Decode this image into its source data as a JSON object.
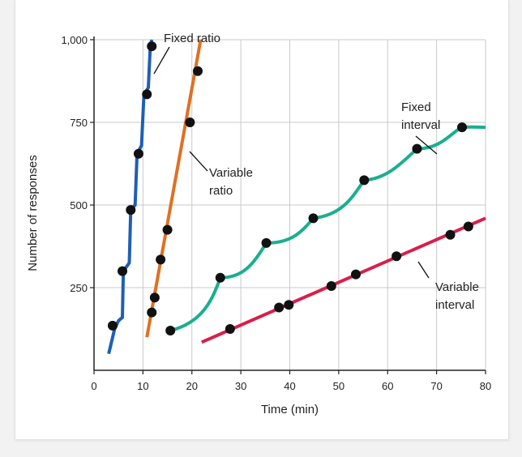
{
  "chart_data": {
    "type": "line",
    "title": "",
    "xlabel": "Time (min)",
    "ylabel": "Number of responses",
    "xlim": [
      0,
      80
    ],
    "ylim": [
      0,
      1000
    ],
    "x_ticks": [
      0,
      10,
      20,
      30,
      40,
      50,
      60,
      70,
      80
    ],
    "y_ticks": [
      250,
      500,
      750,
      1000
    ],
    "y_tick_labels": [
      "250",
      "500",
      "750",
      "1,000"
    ],
    "grid": true,
    "legend": "none (series labeled directly on the chart)",
    "series": [
      {
        "name": "Fixed ratio",
        "label_lines": [
          "Fixed ratio"
        ],
        "color": "#1f5fb4",
        "path": [
          [
            3.0,
            50
          ],
          [
            4.2,
            125
          ],
          [
            5.0,
            150
          ],
          [
            5.8,
            160
          ],
          [
            6.0,
            300
          ],
          [
            7.2,
            325
          ],
          [
            7.5,
            485
          ],
          [
            8.4,
            500
          ],
          [
            8.8,
            655
          ],
          [
            9.7,
            680
          ],
          [
            10.2,
            835
          ],
          [
            11.1,
            855
          ],
          [
            11.5,
            980
          ],
          [
            11.8,
            1000
          ]
        ],
        "points": [
          [
            3.8,
            135
          ],
          [
            5.8,
            300
          ],
          [
            7.5,
            485
          ],
          [
            9.1,
            655
          ],
          [
            10.8,
            835
          ],
          [
            11.8,
            980
          ]
        ]
      },
      {
        "name": "Variable ratio",
        "label_lines": [
          "Variable",
          "ratio"
        ],
        "color": "#e07020",
        "path": [
          [
            10.8,
            100
          ],
          [
            21.8,
            1000
          ]
        ],
        "points": [
          [
            11.8,
            175
          ],
          [
            12.4,
            220
          ],
          [
            13.6,
            335
          ],
          [
            15.0,
            425
          ],
          [
            19.6,
            750
          ],
          [
            21.2,
            905
          ]
        ]
      },
      {
        "name": "Fixed interval",
        "label_lines": [
          "Fixed",
          "interval"
        ],
        "color": "#1aaf8f",
        "curves": [
          [
            [
              15.6,
              120
            ],
            [
              22.3,
              145
            ],
            [
              24.2,
              215
            ],
            [
              25.8,
              280
            ]
          ],
          [
            [
              25.8,
              280
            ],
            [
              30.5,
              280
            ],
            [
              32.5,
              320
            ],
            [
              35.2,
              385
            ]
          ],
          [
            [
              35.2,
              385
            ],
            [
              40.5,
              385
            ],
            [
              42.5,
              420
            ],
            [
              44.8,
              460
            ]
          ],
          [
            [
              44.8,
              460
            ],
            [
              51,
              470
            ],
            [
              53,
              530
            ],
            [
              55.2,
              575
            ]
          ],
          [
            [
              55.2,
              575
            ],
            [
              60,
              580
            ],
            [
              63,
              630
            ],
            [
              66.0,
              670
            ]
          ],
          [
            [
              66.0,
              670
            ],
            [
              71,
              670
            ],
            [
              73,
              720
            ],
            [
              75.2,
              735
            ]
          ],
          [
            [
              75.2,
              735
            ],
            [
              77,
              737
            ],
            [
              78.5,
              735
            ],
            [
              80.0,
              735
            ]
          ]
        ],
        "points": [
          [
            15.6,
            120
          ],
          [
            25.8,
            280
          ],
          [
            35.2,
            385
          ],
          [
            44.8,
            460
          ],
          [
            55.2,
            575
          ],
          [
            66.0,
            670
          ],
          [
            75.2,
            735
          ]
        ]
      },
      {
        "name": "Variable interval",
        "label_lines": [
          "Variable",
          "interval"
        ],
        "color": "#d81f4a",
        "path": [
          [
            22,
            85
          ],
          [
            80,
            460
          ]
        ],
        "points": [
          [
            27.8,
            125
          ],
          [
            37.8,
            190
          ],
          [
            39.8,
            198
          ],
          [
            48.5,
            255
          ],
          [
            53.5,
            290
          ],
          [
            61.8,
            345
          ],
          [
            72.8,
            410
          ],
          [
            76.5,
            435
          ]
        ]
      }
    ]
  }
}
